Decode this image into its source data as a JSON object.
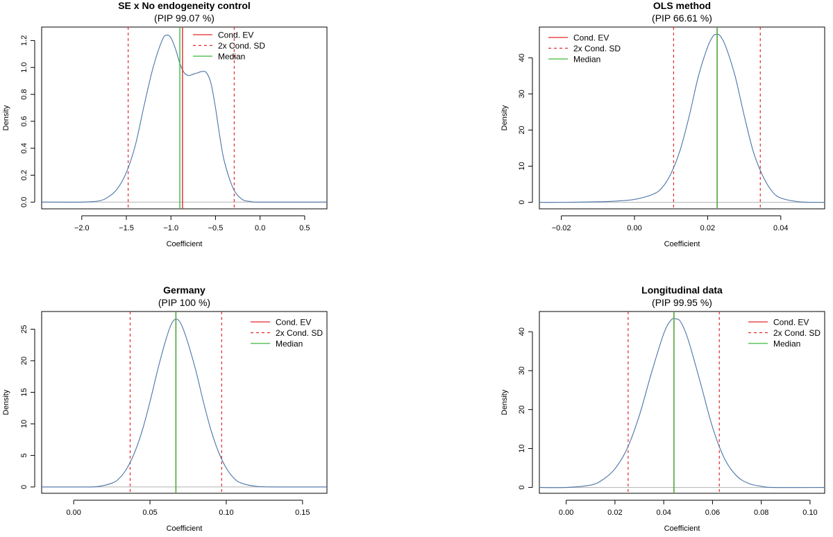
{
  "legend_labels": {
    "ev": "Cond. EV",
    "sd": "2x Cond. SD",
    "median": "Median"
  },
  "colors": {
    "density": "#4a74a8",
    "ev": "#e4262b",
    "sd": "#e4262b",
    "median": "#3cb83c",
    "baseline": "#b0b0b0",
    "axis": "#000000"
  },
  "chart_data": [
    {
      "type": "line",
      "title": "SE x No endogeneity control",
      "subtitle": "(PIP 99.07 %)",
      "xlabel": "Coefficient",
      "ylabel": "Density",
      "xlim": [
        -2.45,
        0.75
      ],
      "ylim": [
        -0.05,
        1.3
      ],
      "xticks": [
        -2.0,
        -1.5,
        -1.0,
        -0.5,
        0.0,
        0.5
      ],
      "xtick_labels": [
        "−2.0",
        "−1.5",
        "−1.0",
        "−0.5",
        "0.0",
        "0.5"
      ],
      "yticks": [
        0.0,
        0.2,
        0.4,
        0.6,
        0.8,
        1.0,
        1.2
      ],
      "ytick_labels": [
        "0.0",
        "0.2",
        "0.4",
        "0.6",
        "0.8",
        "1.0",
        "1.2"
      ],
      "density": {
        "name": "",
        "x": [
          -2.0,
          -1.8,
          -1.7,
          -1.6,
          -1.5,
          -1.4,
          -1.3,
          -1.2,
          -1.1,
          -1.05,
          -1.0,
          -0.95,
          -0.9,
          -0.85,
          -0.8,
          -0.75,
          -0.7,
          -0.65,
          -0.6,
          -0.55,
          -0.5,
          -0.45,
          -0.4,
          -0.3,
          -0.2,
          -0.1,
          0.0
        ],
        "y": [
          0.0,
          0.01,
          0.04,
          0.1,
          0.22,
          0.42,
          0.72,
          1.0,
          1.2,
          1.24,
          1.22,
          1.14,
          1.03,
          0.96,
          0.94,
          0.95,
          0.96,
          0.97,
          0.96,
          0.88,
          0.7,
          0.48,
          0.3,
          0.1,
          0.02,
          0.004,
          0.0
        ]
      },
      "cond_ev": -0.87,
      "median": -0.9,
      "sd_bounds": [
        -1.48,
        -0.29
      ],
      "legend_position": "top-right"
    },
    {
      "type": "line",
      "title": "OLS method",
      "subtitle": "(PIP 66.61 %)",
      "xlabel": "Coefficient",
      "ylabel": "Density",
      "xlim": [
        -0.026,
        0.052
      ],
      "ylim": [
        -1.8,
        48.5
      ],
      "xticks": [
        -0.02,
        0.0,
        0.02,
        0.04
      ],
      "xtick_labels": [
        "−0.02",
        "0.00",
        "0.02",
        "0.04"
      ],
      "yticks": [
        0,
        10,
        20,
        30,
        40
      ],
      "ytick_labels": [
        "0",
        "10",
        "20",
        "30",
        "40"
      ],
      "density": {
        "name": "",
        "x": [
          -0.02,
          -0.01,
          -0.005,
          0.0,
          0.005,
          0.0075,
          0.01,
          0.0125,
          0.015,
          0.0175,
          0.02,
          0.0215,
          0.0225,
          0.0235,
          0.025,
          0.0275,
          0.03,
          0.0325,
          0.035,
          0.0375,
          0.04,
          0.045,
          0.05
        ],
        "y": [
          0.0,
          0.15,
          0.35,
          0.8,
          2.2,
          4.0,
          8.0,
          14.5,
          24.0,
          35.0,
          43.0,
          46.0,
          46.5,
          46.0,
          43.0,
          35.0,
          24.0,
          14.0,
          7.5,
          3.2,
          1.2,
          0.15,
          0.0
        ]
      },
      "cond_ev": 0.0226,
      "median": 0.0226,
      "sd_bounds": [
        0.0107,
        0.0344
      ],
      "legend_position": "top-left"
    },
    {
      "type": "line",
      "title": "Germany",
      "subtitle": "(PIP 100 %)",
      "xlabel": "Coefficient",
      "ylabel": "Density",
      "xlim": [
        -0.021,
        0.166
      ],
      "ylim": [
        -1.0,
        27.8
      ],
      "xticks": [
        0.0,
        0.05,
        0.1,
        0.15
      ],
      "xtick_labels": [
        "0.00",
        "0.05",
        "0.10",
        "0.15"
      ],
      "yticks": [
        0,
        5,
        10,
        15,
        20,
        25
      ],
      "ytick_labels": [
        "0",
        "5",
        "10",
        "15",
        "20",
        "25"
      ],
      "density": {
        "name": "",
        "x": [
          0.0,
          0.015,
          0.025,
          0.03,
          0.035,
          0.04,
          0.045,
          0.05,
          0.055,
          0.06,
          0.064,
          0.067,
          0.07,
          0.074,
          0.08,
          0.085,
          0.09,
          0.095,
          0.1,
          0.105,
          0.11,
          0.12,
          0.135
        ],
        "y": [
          0.0,
          0.05,
          0.6,
          1.4,
          3.0,
          5.5,
          9.0,
          13.5,
          18.5,
          23.0,
          25.8,
          26.6,
          26.0,
          23.5,
          18.5,
          13.5,
          9.0,
          5.5,
          3.0,
          1.4,
          0.6,
          0.1,
          0.0
        ]
      },
      "cond_ev": 0.067,
      "median": 0.067,
      "sd_bounds": [
        0.037,
        0.097
      ],
      "legend_position": "top-right"
    },
    {
      "type": "line",
      "title": "Longitudinal data",
      "subtitle": "(PIP 99.95 %)",
      "xlabel": "Coefficient",
      "ylabel": "Density",
      "xlim": [
        -0.011,
        0.106
      ],
      "ylim": [
        -1.5,
        45.2
      ],
      "xticks": [
        0.0,
        0.02,
        0.04,
        0.06,
        0.08,
        0.1
      ],
      "xtick_labels": [
        "0.00",
        "0.02",
        "0.04",
        "0.06",
        "0.08",
        "0.10"
      ],
      "yticks": [
        0,
        10,
        20,
        30,
        40
      ],
      "ytick_labels": [
        "0",
        "10",
        "20",
        "30",
        "40"
      ],
      "density": {
        "name": "",
        "x": [
          0.0,
          0.01,
          0.015,
          0.02,
          0.025,
          0.03,
          0.035,
          0.04,
          0.043,
          0.045,
          0.047,
          0.05,
          0.055,
          0.06,
          0.065,
          0.07,
          0.075,
          0.08,
          0.085
        ],
        "y": [
          0.0,
          0.6,
          2.0,
          4.8,
          10.0,
          18.5,
          29.5,
          39.5,
          43.0,
          43.3,
          42.5,
          38.0,
          27.0,
          15.5,
          7.3,
          2.9,
          1.0,
          0.3,
          0.0
        ]
      },
      "cond_ev": 0.0442,
      "median": 0.0442,
      "sd_bounds": [
        0.0254,
        0.0628
      ],
      "legend_position": "top-right"
    }
  ]
}
